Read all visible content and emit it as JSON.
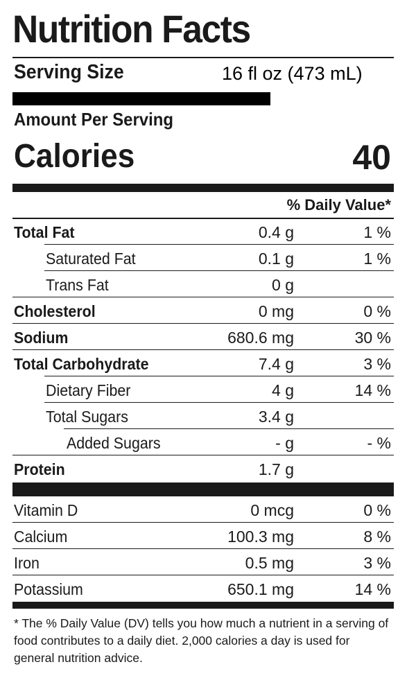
{
  "label": {
    "title": "Nutrition Facts",
    "serving_size_label": "Serving Size",
    "serving_size_value": "16 fl oz (473 mL)",
    "amount_per_serving": "Amount Per Serving",
    "calories_label": "Calories",
    "calories_value": "40",
    "daily_value_header": "% Daily Value*",
    "nutrients": [
      {
        "name": "Total Fat",
        "amount": "0.4 g",
        "dv": "1 %"
      },
      {
        "name": "Saturated Fat",
        "amount": "0.1 g",
        "dv": "1 %"
      },
      {
        "name": "Trans Fat",
        "amount": "0 g",
        "dv": ""
      },
      {
        "name": "Cholesterol",
        "amount": "0 mg",
        "dv": "0 %"
      },
      {
        "name": "Sodium",
        "amount": "680.6 mg",
        "dv": "30 %"
      },
      {
        "name": "Total Carbohydrate",
        "amount": "7.4 g",
        "dv": "3 %"
      },
      {
        "name": "Dietary Fiber",
        "amount": "4 g",
        "dv": "14 %"
      },
      {
        "name": "Total Sugars",
        "amount": "3.4 g",
        "dv": ""
      },
      {
        "name": "Added Sugars",
        "amount": "- g",
        "dv": "- %"
      },
      {
        "name": "Protein",
        "amount": "1.7 g",
        "dv": ""
      }
    ],
    "vitamins": [
      {
        "name": "Vitamin D",
        "amount": "0 mcg",
        "dv": "0 %"
      },
      {
        "name": "Calcium",
        "amount": "100.3 mg",
        "dv": "8 %"
      },
      {
        "name": "Iron",
        "amount": "0.5 mg",
        "dv": "3 %"
      },
      {
        "name": "Potassium",
        "amount": "650.1 mg",
        "dv": "14 %"
      }
    ],
    "footnote": "* The % Daily Value (DV) tells you how much a nutrient in a serving of food contributes to a daily diet. 2,000 calories a day is used for general nutrition advice."
  }
}
